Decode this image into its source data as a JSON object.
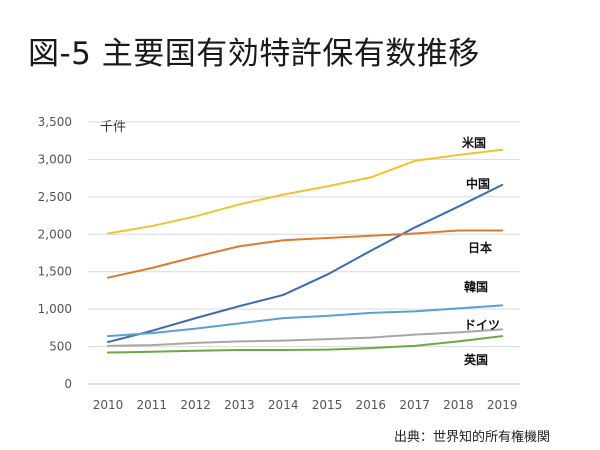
{
  "title": "図-5 主要国有効特許保有数推移",
  "unit_label": "千件",
  "source": "出典：世界知的所有権機関",
  "chart_data": {
    "type": "line",
    "title": "図-5 主要国有効特許保有数推移",
    "xlabel": "",
    "ylabel": "千件",
    "x": [
      "2010",
      "2011",
      "2012",
      "2013",
      "2014",
      "2015",
      "2016",
      "2017",
      "2018",
      "2019"
    ],
    "ylim": [
      0,
      3500
    ],
    "yticks": [
      "0",
      "500",
      "1,000",
      "1,500",
      "2,000",
      "2,500",
      "3,000",
      "3,500"
    ],
    "grid": true,
    "series": [
      {
        "name": "米国",
        "color": "#f2c12e",
        "values": [
          2010,
          2110,
          2240,
          2400,
          2530,
          2640,
          2760,
          2980,
          3060,
          3130
        ]
      },
      {
        "name": "中国",
        "color": "#3e6bb0",
        "values": [
          560,
          710,
          880,
          1040,
          1190,
          1460,
          1780,
          2090,
          2370,
          2660
        ]
      },
      {
        "name": "日本",
        "color": "#e0792f",
        "values": [
          1420,
          1550,
          1700,
          1840,
          1920,
          1950,
          1980,
          2010,
          2050,
          2050
        ]
      },
      {
        "name": "韓国",
        "color": "#5aa0d6",
        "values": [
          640,
          680,
          740,
          810,
          880,
          910,
          950,
          970,
          1010,
          1050
        ]
      },
      {
        "name": "ドイツ",
        "color": "#a7a7a7",
        "values": [
          510,
          520,
          550,
          570,
          580,
          600,
          620,
          660,
          690,
          730
        ]
      },
      {
        "name": "英国",
        "color": "#6aaa44",
        "values": [
          420,
          430,
          445,
          455,
          455,
          460,
          480,
          510,
          570,
          640
        ]
      }
    ]
  }
}
